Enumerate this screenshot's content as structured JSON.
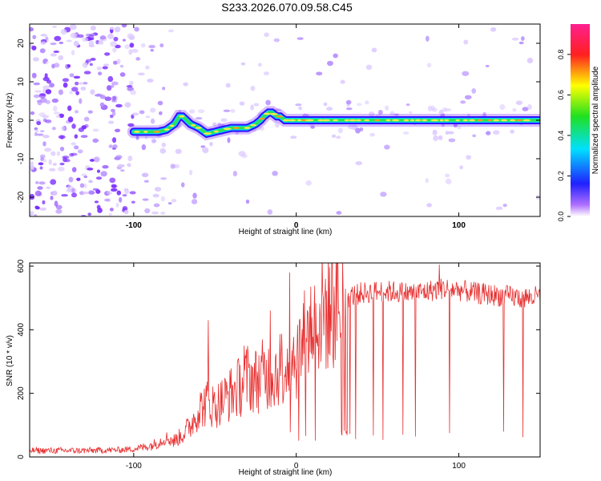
{
  "title": "S233.2026.070.09.58.C45",
  "colors": {
    "snr_line": "#e83030",
    "track": "#ffd24a",
    "track_edge": "#00c8ff",
    "noise": "#7a2cff"
  },
  "chart_data": [
    {
      "type": "heatmap",
      "xlabel": "Height of straight line (km)",
      "ylabel": "Frequency (Hz)",
      "xlim": [
        -164,
        150
      ],
      "ylim": [
        -25,
        25
      ],
      "x_ticks": [
        -100,
        0,
        100
      ],
      "x_tick_labels": [
        "-100",
        "0",
        "100"
      ],
      "y_ticks": [
        20,
        10,
        0,
        -10,
        -20
      ],
      "y_tick_labels": [
        "20",
        "10",
        "0",
        "-10",
        "-20"
      ],
      "colorbar": {
        "label": "Normalized spectral amplitude",
        "range": [
          0,
          0.95
        ],
        "ticks": [
          0,
          0.2,
          0.4,
          0.6,
          0.8
        ],
        "tick_labels": [
          "0.0",
          "0.2",
          "0.4",
          "0.6",
          "0.8"
        ],
        "colormap": "rainbow (purple-blue-cyan-green-yellow-red-magenta)"
      },
      "ridge": {
        "x": [
          -100,
          -95,
          -90,
          -85,
          -80,
          -75,
          -72,
          -70,
          -65,
          -60,
          -55,
          -50,
          -45,
          -40,
          -35,
          -30,
          -25,
          -22,
          -20,
          -17,
          -15,
          -12,
          -10,
          -7,
          -5,
          -3,
          0,
          5,
          10,
          20,
          40,
          60,
          80,
          100,
          120,
          140,
          150
        ],
        "y": [
          -3,
          -3,
          -3,
          -3,
          -2.5,
          -1,
          1,
          1,
          -1,
          -2,
          -3.5,
          -3,
          -2.5,
          -2,
          -2,
          -2,
          -1,
          0,
          1,
          2,
          2,
          1,
          1,
          0,
          0,
          0,
          0,
          0,
          0,
          0,
          0,
          0,
          0,
          0,
          0,
          0,
          0
        ]
      }
    },
    {
      "type": "line",
      "xlabel": "Height of straight line (km)",
      "ylabel": "SNR (10 * v/v)",
      "xlim": [
        -164,
        150
      ],
      "ylim": [
        0,
        610
      ],
      "x_ticks": [
        -100,
        0,
        100
      ],
      "x_tick_labels": [
        "-100",
        "0",
        "100"
      ],
      "y_ticks": [
        0,
        200,
        400,
        600
      ],
      "y_tick_labels": [
        "0",
        "200",
        "400",
        "600"
      ],
      "series": [
        {
          "name": "SNR",
          "x": [
            -164,
            -150,
            -130,
            -110,
            -100,
            -90,
            -85,
            -80,
            -75,
            -70,
            -65,
            -60,
            -55,
            -50,
            -45,
            -40,
            -35,
            -30,
            -25,
            -20,
            -15,
            -10,
            -5,
            0,
            5,
            10,
            15,
            20,
            25,
            30,
            40,
            50,
            60,
            70,
            80,
            90,
            100,
            110,
            120,
            130,
            140,
            150
          ],
          "values": [
            20,
            20,
            20,
            22,
            25,
            35,
            45,
            60,
            50,
            70,
            100,
            150,
            170,
            160,
            180,
            200,
            220,
            250,
            240,
            260,
            260,
            280,
            300,
            320,
            370,
            420,
            450,
            470,
            490,
            500,
            515,
            520,
            520,
            515,
            520,
            530,
            525,
            515,
            510,
            505,
            500,
            505
          ]
        }
      ],
      "spikes": [
        {
          "x": -54,
          "value": 430
        },
        {
          "x": -32,
          "value": 350
        },
        {
          "x": -16,
          "value": 460
        },
        {
          "x": -4,
          "value": 580
        },
        {
          "x": 18,
          "value": 560
        },
        {
          "x": 88,
          "value": 605
        }
      ]
    }
  ]
}
